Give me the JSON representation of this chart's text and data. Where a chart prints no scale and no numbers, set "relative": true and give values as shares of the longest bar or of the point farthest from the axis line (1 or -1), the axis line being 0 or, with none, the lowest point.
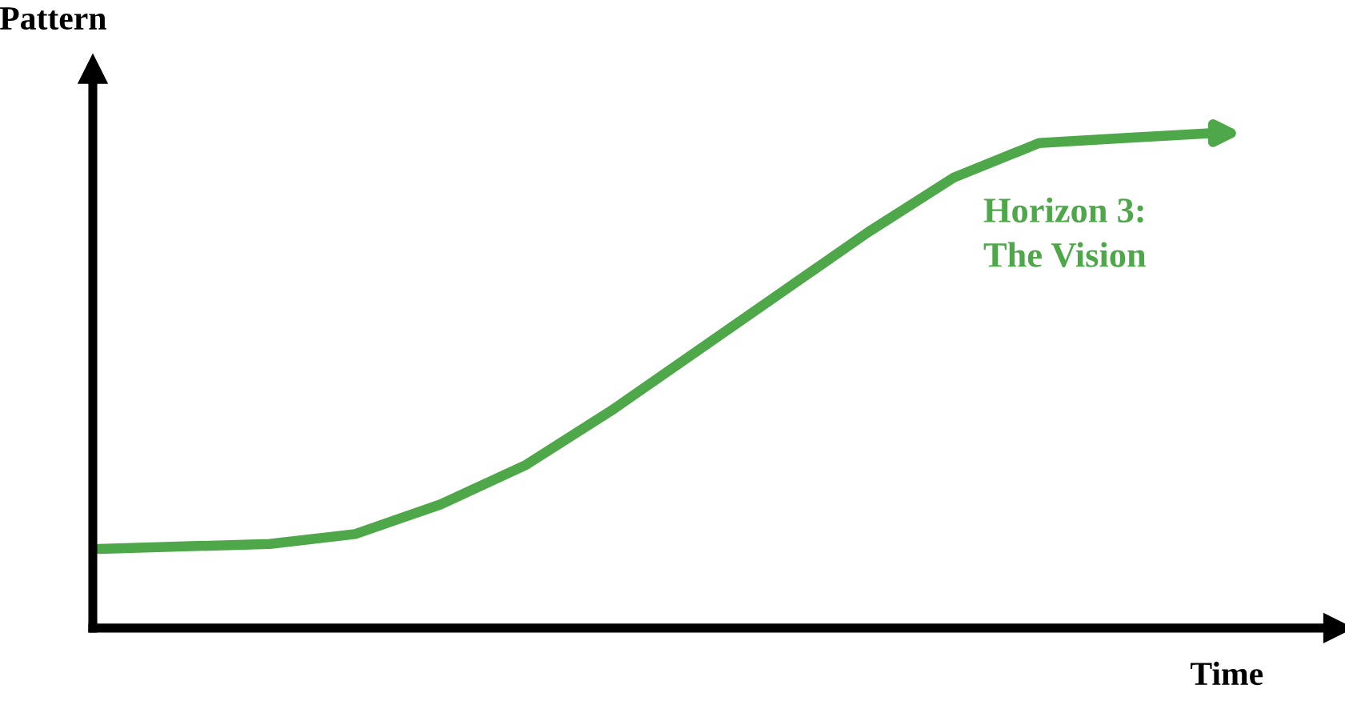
{
  "chart_data": {
    "type": "line",
    "relative": true,
    "xlabel": "Time",
    "ylabel": "Pattern",
    "categories": [
      null,
      null,
      null,
      null,
      null,
      null,
      null,
      null,
      null,
      null,
      null,
      null,
      null,
      null
    ],
    "series": [
      {
        "color": "#4ea84a",
        "values": [
          0.16,
          0.165,
          0.17,
          0.19,
          0.25,
          0.33,
          0.44,
          0.56,
          0.68,
          0.8,
          0.91,
          0.98,
          0.99,
          1
        ]
      }
    ],
    "annotations": [
      "Horizon 3:\nThe Vision"
    ],
    "grid": false,
    "legend": false,
    "line_style": "solid"
  }
}
